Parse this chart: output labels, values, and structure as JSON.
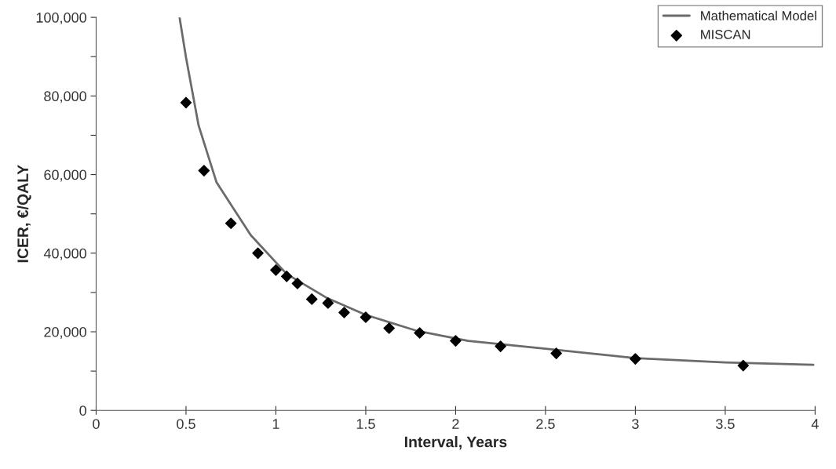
{
  "chart_data": {
    "type": "scatter",
    "xlabel": "Interval, Years",
    "ylabel": "ICER, €/QALY",
    "series": [
      {
        "name": "Mathematical Model",
        "type": "line",
        "color": "#6b6b6b",
        "marker": "none",
        "x": [
          0.464,
          0.5,
          0.57,
          0.67,
          0.86,
          1.06,
          1.28,
          1.5,
          1.78,
          2.07,
          2.5,
          3.0,
          3.5,
          3.99
        ],
        "values": [
          100000,
          89800,
          72500,
          58000,
          44600,
          34700,
          28700,
          24300,
          20300,
          17700,
          15700,
          13300,
          12200,
          11600
        ]
      },
      {
        "name": "MISCAN",
        "color": "#000000",
        "marker": "diamond",
        "x": [
          0.5,
          0.6,
          0.75,
          0.9,
          1.0,
          1.06,
          1.12,
          1.2,
          1.29,
          1.38,
          1.5,
          1.63,
          1.8,
          2.0,
          2.25,
          2.56,
          3.0,
          3.6
        ],
        "values": [
          78300,
          61000,
          47600,
          40000,
          35700,
          34100,
          32300,
          28300,
          27300,
          24900,
          23700,
          20900,
          19700,
          17700,
          16300,
          14500,
          13100,
          11400
        ]
      }
    ],
    "xlim": [
      0,
      4
    ],
    "xticks": [
      0,
      0.5,
      1,
      1.5,
      2,
      2.5,
      3,
      3.5,
      4
    ],
    "ylim": [
      0,
      100000
    ],
    "yticks": [
      {
        "value": 0,
        "label": "0"
      },
      {
        "value": 10000,
        "label": null
      },
      {
        "value": 20000,
        "label": "20,000"
      },
      {
        "value": 30000,
        "label": null
      },
      {
        "value": 40000,
        "label": "40,000"
      },
      {
        "value": 50000,
        "label": null
      },
      {
        "value": 60000,
        "label": "60,000"
      },
      {
        "value": 70000,
        "label": null
      },
      {
        "value": 80000,
        "label": "80,000"
      },
      {
        "value": 90000,
        "label": null
      },
      {
        "value": 100000,
        "label": "100,000"
      }
    ],
    "grid": false,
    "legend": "top right"
  }
}
